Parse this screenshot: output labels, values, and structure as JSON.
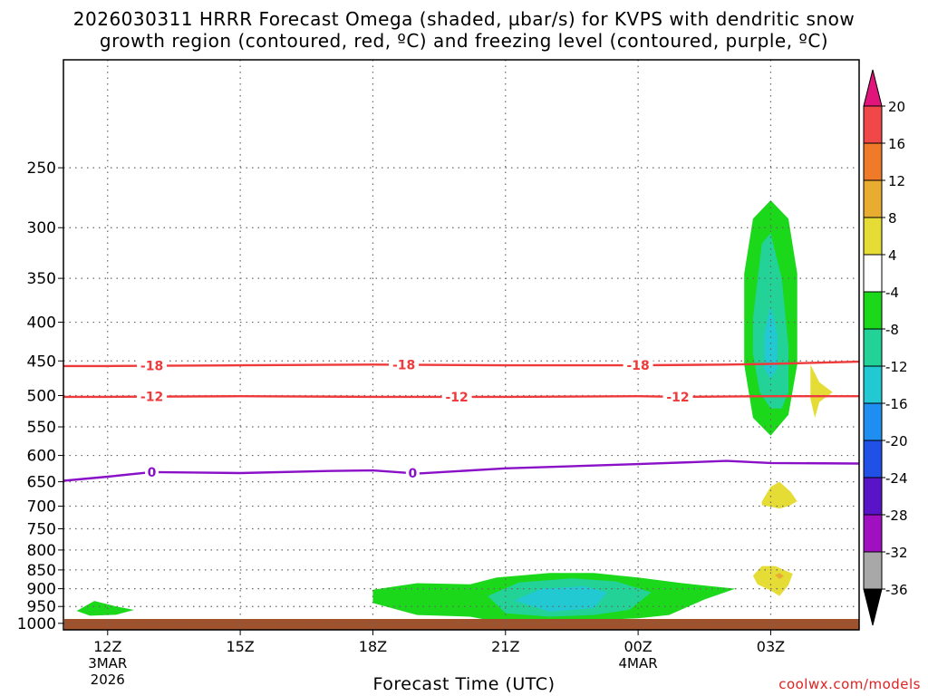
{
  "header": {
    "title_line1": "2026030311 HRRR Forecast Omega (shaded, µbar/s) for KVPS with dendritic snow",
    "title_line2": "growth region (contoured, red, ºC) and freezing level (contoured, purple, ºC)"
  },
  "footer": {
    "credit": "coolwx.com/models"
  },
  "chart_data": {
    "type": "contour",
    "xlabel": "Forecast Time (UTC)",
    "ylabel": "",
    "x_ticks": [
      {
        "label": "12Z",
        "sub": [
          "3MAR",
          "2026"
        ],
        "hour": 0
      },
      {
        "label": "15Z",
        "sub": [],
        "hour": 3
      },
      {
        "label": "18Z",
        "sub": [],
        "hour": 6
      },
      {
        "label": "21Z",
        "sub": [],
        "hour": 9
      },
      {
        "label": "00Z",
        "sub": [
          "4MAR"
        ],
        "hour": 12
      },
      {
        "label": "03Z",
        "sub": [],
        "hour": 15
      }
    ],
    "xlim_hours": [
      -1,
      17
    ],
    "ylim_hPa": [
      1020,
      180
    ],
    "y_scale": "log",
    "y_ticks": [
      250,
      300,
      350,
      400,
      450,
      500,
      550,
      600,
      650,
      700,
      750,
      800,
      850,
      900,
      950,
      1000
    ],
    "grid": true,
    "colorbar": {
      "ticks": [
        20,
        16,
        12,
        8,
        4,
        -4,
        -8,
        -12,
        -16,
        -20,
        -24,
        -28,
        -32,
        -36
      ],
      "bins": [
        {
          "range": ">20",
          "color": "#e0147a"
        },
        {
          "range": "16 to 20",
          "color": "#f04848"
        },
        {
          "range": "12 to 16",
          "color": "#ee7a2a"
        },
        {
          "range": "8 to 12",
          "color": "#e8ac30"
        },
        {
          "range": "4 to 8",
          "color": "#e6dc36"
        },
        {
          "range": "-4 to 4",
          "color": "#ffffff"
        },
        {
          "range": "-8 to -4",
          "color": "#1bd81b"
        },
        {
          "range": "-12 to -8",
          "color": "#22d296"
        },
        {
          "range": "-16 to -12",
          "color": "#22c8d2"
        },
        {
          "range": "-20 to -16",
          "color": "#1e8ef0"
        },
        {
          "range": "-24 to -20",
          "color": "#2050e6"
        },
        {
          "range": "-28 to -24",
          "color": "#5a14c8"
        },
        {
          "range": "-32 to -28",
          "color": "#a010c0"
        },
        {
          "range": "-36 to -32",
          "color": "#a8a8a8"
        },
        {
          "range": "<-36",
          "color": "#000000"
        }
      ]
    },
    "contour_lines": [
      {
        "value": -18,
        "color": "#ee3a3a",
        "label": "-18",
        "points": [
          [
            -1,
            457
          ],
          [
            0,
            457
          ],
          [
            3,
            456
          ],
          [
            6,
            455
          ],
          [
            9,
            456
          ],
          [
            12,
            456
          ],
          [
            14,
            455
          ],
          [
            15,
            454
          ],
          [
            17,
            451
          ]
        ],
        "label_hours": [
          1,
          6.7,
          12
        ]
      },
      {
        "value": -12,
        "color": "#ee3a3a",
        "label": "-12",
        "points": [
          [
            -1,
            502
          ],
          [
            0,
            502
          ],
          [
            3,
            501
          ],
          [
            6,
            502
          ],
          [
            9,
            502
          ],
          [
            12,
            501
          ],
          [
            13,
            502
          ],
          [
            15,
            501
          ],
          [
            17,
            501
          ]
        ],
        "label_hours": [
          1,
          7.9,
          12.9
        ]
      },
      {
        "value": 0,
        "color": "#8a10c8",
        "label": "0",
        "points": [
          [
            -1,
            648
          ],
          [
            0,
            640
          ],
          [
            1,
            631
          ],
          [
            2,
            632
          ],
          [
            3,
            633
          ],
          [
            5,
            629
          ],
          [
            6,
            628
          ],
          [
            7,
            634
          ],
          [
            9,
            624
          ],
          [
            12,
            616
          ],
          [
            14,
            610
          ],
          [
            15,
            614
          ],
          [
            17,
            615
          ]
        ],
        "label_hours": [
          1,
          6.9
        ]
      }
    ],
    "omega_regions": [
      {
        "level": "-8 to -4",
        "points": [
          [
            -0.7,
            963
          ],
          [
            -0.3,
            934
          ],
          [
            0.2,
            950
          ],
          [
            0.6,
            960
          ],
          [
            0.2,
            974
          ],
          [
            -0.4,
            977
          ]
        ]
      },
      {
        "level": "-8 to -4",
        "points": [
          [
            6,
            903
          ],
          [
            7,
            885
          ],
          [
            8.2,
            888
          ],
          [
            8.8,
            870
          ],
          [
            10,
            858
          ],
          [
            11,
            858
          ],
          [
            12,
            870
          ],
          [
            13,
            885
          ],
          [
            14.2,
            900
          ],
          [
            13.5,
            930
          ],
          [
            12.7,
            975
          ],
          [
            12,
            985
          ],
          [
            11,
            990
          ],
          [
            10,
            1000
          ],
          [
            9,
            1000
          ],
          [
            8.2,
            980
          ],
          [
            7,
            975
          ],
          [
            6,
            940
          ]
        ]
      },
      {
        "level": "-12 to -8",
        "points": [
          [
            8.6,
            920
          ],
          [
            9.3,
            883
          ],
          [
            10.5,
            872
          ],
          [
            11.5,
            880
          ],
          [
            12.3,
            910
          ],
          [
            11.8,
            960
          ],
          [
            11,
            975
          ],
          [
            10,
            980
          ],
          [
            9,
            970
          ]
        ]
      },
      {
        "level": "-16 to -12",
        "points": [
          [
            9.2,
            933
          ],
          [
            9.8,
            900
          ],
          [
            10.8,
            893
          ],
          [
            11.3,
            910
          ],
          [
            11,
            955
          ],
          [
            10,
            965
          ]
        ]
      },
      {
        "level": "-8 to -4",
        "points": [
          [
            14.4,
            345
          ],
          [
            14.6,
            292
          ],
          [
            15,
            276
          ],
          [
            15.4,
            292
          ],
          [
            15.6,
            345
          ],
          [
            15.6,
            455
          ],
          [
            15.4,
            530
          ],
          [
            15,
            565
          ],
          [
            14.6,
            535
          ],
          [
            14.4,
            455
          ]
        ]
      },
      {
        "level": "-12 to -8",
        "points": [
          [
            14.6,
            395
          ],
          [
            14.8,
            315
          ],
          [
            15,
            305
          ],
          [
            15.25,
            350
          ],
          [
            15.4,
            430
          ],
          [
            15.4,
            495
          ],
          [
            15.25,
            520
          ],
          [
            15,
            520
          ],
          [
            14.75,
            495
          ],
          [
            14.6,
            440
          ]
        ]
      },
      {
        "level": "-16 to -12",
        "points": [
          [
            14.85,
            415
          ],
          [
            15,
            380
          ],
          [
            15.15,
            415
          ],
          [
            15.15,
            460
          ],
          [
            15,
            475
          ],
          [
            14.85,
            460
          ]
        ]
      },
      {
        "level": "4 to 8",
        "points": [
          [
            15.9,
            455
          ],
          [
            16.1,
            480
          ],
          [
            16.4,
            495
          ],
          [
            16.1,
            510
          ],
          [
            16,
            535
          ],
          [
            15.9,
            505
          ]
        ]
      },
      {
        "level": "4 to 8",
        "points": [
          [
            14.8,
            690
          ],
          [
            15,
            660
          ],
          [
            15.2,
            650
          ],
          [
            15.45,
            670
          ],
          [
            15.6,
            690
          ],
          [
            15.4,
            700
          ],
          [
            15.2,
            705
          ],
          [
            14.8,
            698
          ]
        ]
      },
      {
        "level": "4 to 8",
        "points": [
          [
            14.6,
            865
          ],
          [
            14.8,
            840
          ],
          [
            15.1,
            840
          ],
          [
            15.5,
            860
          ],
          [
            15.4,
            890
          ],
          [
            15.2,
            920
          ],
          [
            15,
            905
          ],
          [
            14.7,
            888
          ]
        ]
      },
      {
        "level": "8 to 12",
        "points": [
          [
            15.1,
            864
          ],
          [
            15.2,
            858
          ],
          [
            15.3,
            866
          ],
          [
            15.2,
            874
          ]
        ]
      }
    ]
  }
}
